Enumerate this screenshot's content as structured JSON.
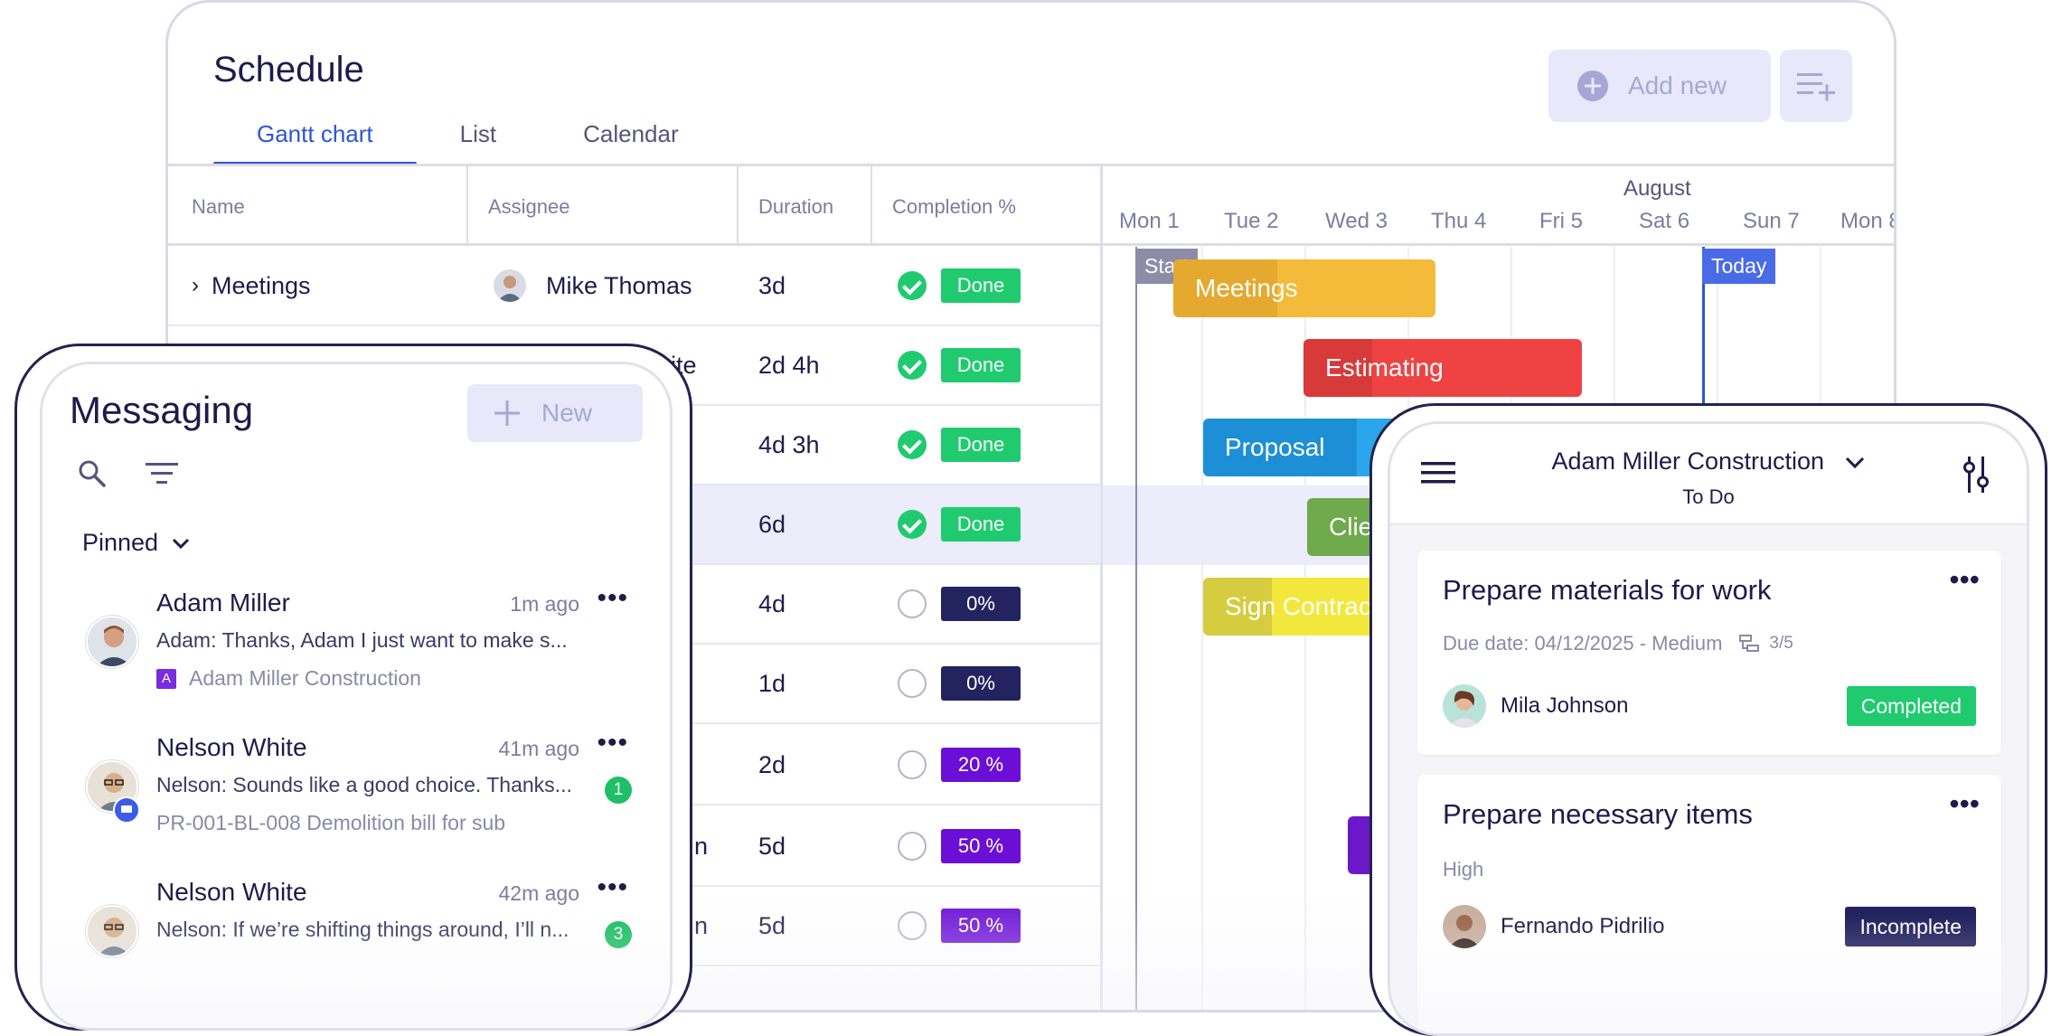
{
  "schedule": {
    "title": "Schedule",
    "tabs": [
      "Gantt chart",
      "List",
      "Calendar"
    ],
    "add_new_label": "Add new",
    "columns": [
      "Name",
      "Assignee",
      "Duration",
      "Completion %"
    ],
    "rows": [
      {
        "name": "Meetings",
        "assignee": "Mike Thomas",
        "duration": "3d",
        "status": "Done"
      },
      {
        "name": "",
        "assignee": "ite",
        "duration": "2d 4h",
        "status": "Done"
      },
      {
        "name": "",
        "assignee": "",
        "duration": "4d 3h",
        "status": "Done"
      },
      {
        "name": "",
        "assignee": "",
        "duration": "6d",
        "status": "Done"
      },
      {
        "name": "",
        "assignee": "",
        "duration": "4d",
        "status": "0%"
      },
      {
        "name": "",
        "assignee": "",
        "duration": "1d",
        "status": "0%"
      },
      {
        "name": "",
        "assignee": "",
        "duration": "2d",
        "status": "20 %"
      },
      {
        "name": "",
        "assignee": "n",
        "duration": "5d",
        "status": "50 %"
      },
      {
        "name": "",
        "assignee": "n",
        "duration": "5d",
        "status": "50 %"
      }
    ],
    "gantt": {
      "month": "August",
      "days": [
        "Mon 1",
        "Tue 2",
        "Wed 3",
        "Thu 4",
        "Fri 5",
        "Sat 6",
        "Sun 7",
        "Mon 8"
      ],
      "start_label": "Start",
      "today_label": "Today",
      "bars": [
        "Meetings",
        "Estimating",
        "Proposal",
        "Clie",
        "Sign Contrac"
      ]
    },
    "colors": {
      "done": "#1fcb6e",
      "zero": "#23235f",
      "progress": "#6b0fd6",
      "accent": "#2f54d6"
    }
  },
  "messaging": {
    "title": "Messaging",
    "new_label": "New",
    "pinned_label": "Pinned",
    "messages": [
      {
        "name": "Adam Miller",
        "time": "1m ago",
        "text": "Adam: Thanks, Adam I just want to make s...",
        "sub": "Adam Miller Construction",
        "project_letter": "A"
      },
      {
        "name": "Nelson White",
        "time": "41m ago",
        "text": "Nelson: Sounds like a good choice. Thanks...",
        "sub": "PR-001-BL-008 Demolition bill for sub",
        "badge": "1"
      },
      {
        "name": "Nelson White",
        "time": "42m ago",
        "text": "Nelson: If we’re shifting things around, I’ll n...",
        "badge": "3"
      }
    ]
  },
  "tasks": {
    "project": "Adam Miller Construction",
    "view": "To Do",
    "cards": [
      {
        "title": "Prepare materials for work",
        "meta": "Due date: 04/12/2025 - Medium",
        "subtasks": "3/5",
        "person": "Mila Johnson",
        "status": "Completed"
      },
      {
        "title": "Prepare necessary items",
        "meta": "High",
        "person": "Fernando Pidrilio",
        "status": "Incomplete"
      }
    ]
  }
}
